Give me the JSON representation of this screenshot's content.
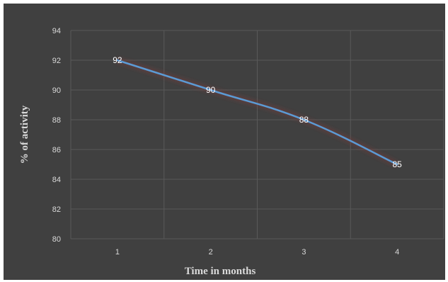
{
  "chart_data": {
    "type": "line",
    "title": "",
    "xlabel": "Time in months",
    "ylabel": "% of activity",
    "categories": [
      "1",
      "2",
      "3",
      "4"
    ],
    "series": [
      {
        "values": [
          92,
          90,
          88,
          85
        ]
      }
    ],
    "data_labels": [
      "92",
      "90",
      "88",
      "85"
    ],
    "ylim": [
      80,
      94
    ],
    "yticks": [
      "80",
      "82",
      "84",
      "86",
      "88",
      "90",
      "92",
      "94"
    ],
    "grid": true,
    "legend": "none",
    "colors": {
      "background": "#404040",
      "line": "#5b9bd5",
      "grid": "#595959",
      "text": "#d9d9d9"
    }
  }
}
